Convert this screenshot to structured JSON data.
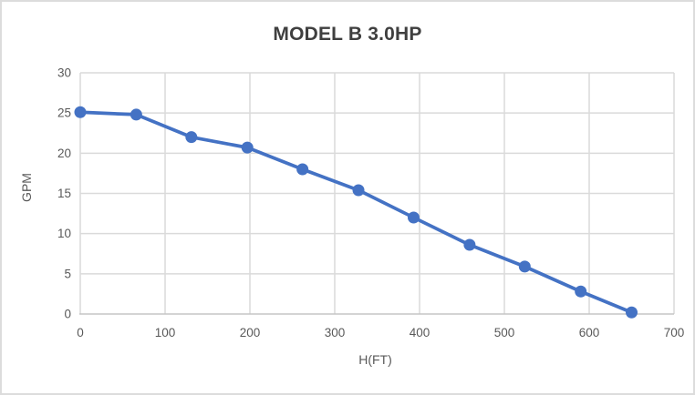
{
  "chart_data": {
    "type": "line",
    "title": "MODEL B 3.0HP",
    "xlabel": "H(FT)",
    "ylabel": "GPM",
    "x": [
      0,
      66,
      131,
      197,
      262,
      328,
      393,
      459,
      524,
      590,
      650
    ],
    "y": [
      25.1,
      24.8,
      22.0,
      20.7,
      18.0,
      15.4,
      12.0,
      8.6,
      5.9,
      2.8,
      0.2
    ],
    "xlim": [
      0,
      700
    ],
    "ylim": [
      0,
      30
    ],
    "x_ticks": [
      0,
      100,
      200,
      300,
      400,
      500,
      600,
      700
    ],
    "y_ticks": [
      0,
      5,
      10,
      15,
      20,
      25,
      30
    ],
    "grid": true,
    "legend": false,
    "series_name": "MODEL B 3.0HP",
    "colors": {
      "series": "#4472c4",
      "gridline": "#dadada",
      "axis_line": "#c6c6c6",
      "title_text": "#3f3f3f",
      "tick_text": "#595959",
      "frame_border": "#dcdcdc",
      "background": "#ffffff"
    }
  }
}
